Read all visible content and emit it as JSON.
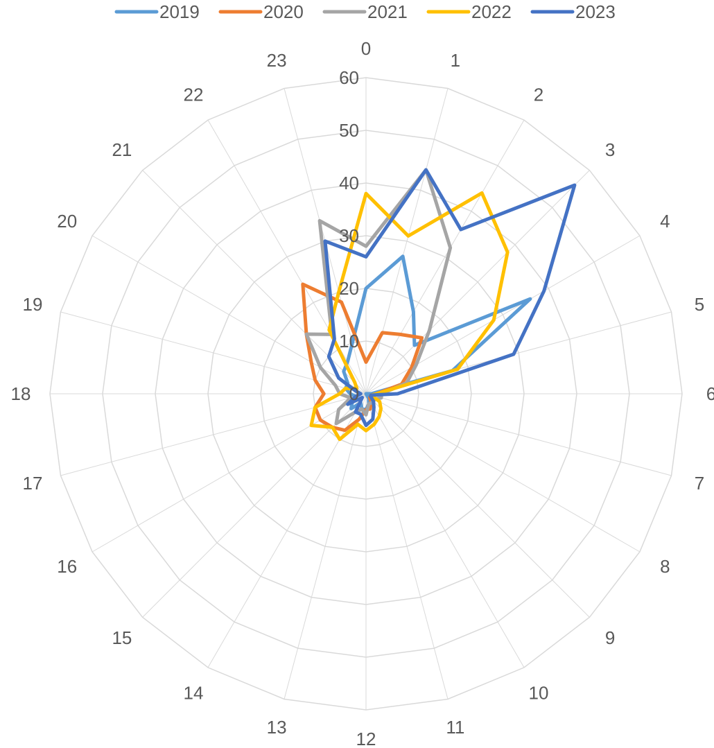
{
  "chart_data": {
    "type": "radar",
    "title": "",
    "categories": [
      "0",
      "1",
      "2",
      "3",
      "4",
      "5",
      "6",
      "7",
      "8",
      "9",
      "10",
      "11",
      "12",
      "13",
      "14",
      "15",
      "16",
      "17",
      "18",
      "19",
      "20",
      "21",
      "22",
      "23"
    ],
    "radial_axis": {
      "min": 0,
      "max": 60,
      "ticks": [
        0,
        10,
        20,
        30,
        40,
        50,
        60
      ],
      "tick_labels": [
        "0",
        "10",
        "20",
        "30",
        "40",
        "50",
        "60"
      ]
    },
    "grid": true,
    "legend_position": "top",
    "series": [
      {
        "name": "2019",
        "color": "#5b9bd5",
        "values": [
          20,
          27,
          18,
          13,
          36,
          17,
          1,
          0,
          0,
          0,
          1,
          2,
          3,
          3,
          2,
          4,
          3,
          2,
          3,
          4,
          4,
          6,
          7,
          10
        ]
      },
      {
        "name": "2020",
        "color": "#ed7d31",
        "values": [
          6,
          12,
          13,
          15,
          10,
          7,
          2,
          1,
          1,
          1,
          2,
          3,
          3,
          5,
          8,
          9,
          10,
          10,
          8,
          10,
          12,
          16,
          24,
          18
        ]
      },
      {
        "name": "2021",
        "color": "#a5a5a5",
        "values": [
          28,
          44,
          32,
          17,
          11,
          8,
          3,
          3,
          2,
          2,
          2,
          2,
          4,
          3,
          4,
          8,
          6,
          3,
          5,
          6,
          10,
          16,
          13,
          34
        ]
      },
      {
        "name": "2022",
        "color": "#ffc000",
        "values": [
          38,
          31,
          44,
          38,
          28,
          18,
          2,
          1,
          3,
          4,
          5,
          6,
          7,
          6,
          10,
          9,
          12,
          10,
          5,
          4,
          2,
          3,
          14,
          20
        ]
      },
      {
        "name": "2023",
        "color": "#4472c4",
        "values": [
          26,
          44,
          36,
          56,
          39,
          29,
          6,
          1,
          1,
          2,
          3,
          5,
          6,
          4,
          4,
          1,
          4,
          2,
          1,
          2,
          6,
          10,
          12,
          30
        ]
      }
    ]
  }
}
